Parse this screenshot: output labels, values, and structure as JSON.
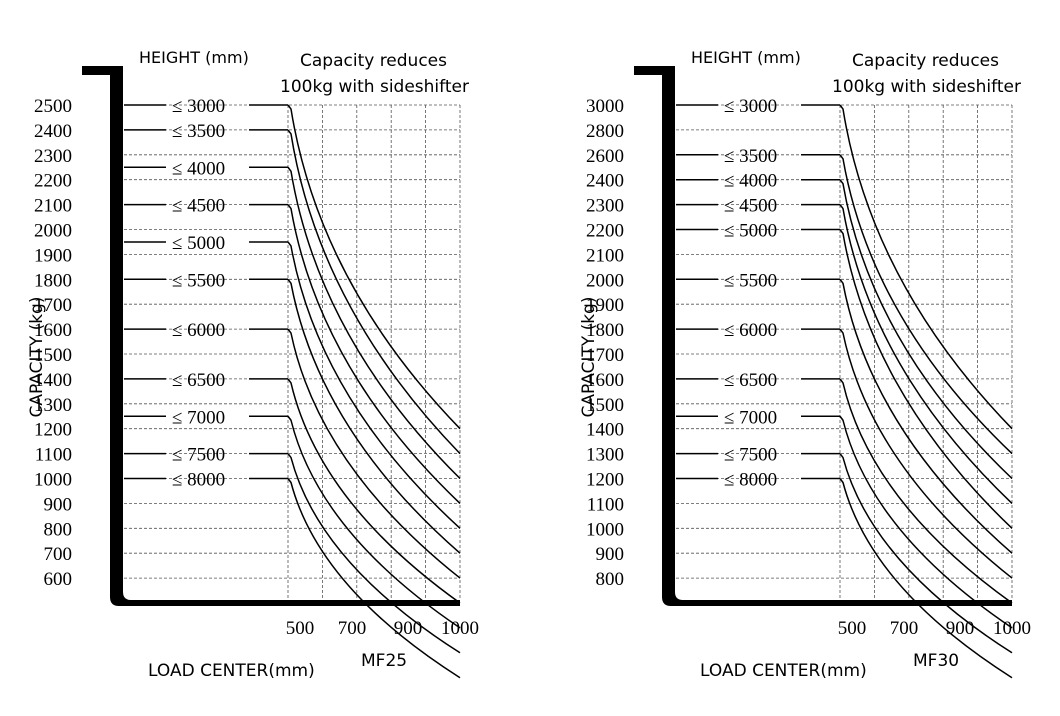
{
  "chart_data": [
    {
      "type": "line",
      "model": "MF25",
      "height_header": "HEIGHT (mm)",
      "note_lines": [
        "Capacity reduces",
        "100kg with sideshifter"
      ],
      "ylabel": "CAPACITY (kg)",
      "xlabel": "LOAD CENTER(mm)",
      "y_ticks": [
        2500,
        2400,
        2300,
        2200,
        2100,
        2000,
        1900,
        1800,
        1700,
        1600,
        1500,
        1400,
        1300,
        1200,
        1100,
        1000,
        900,
        800,
        700,
        600
      ],
      "x_ticks": [
        500,
        700,
        900,
        1000
      ],
      "x_grid": [
        500,
        600,
        700,
        800,
        900,
        1000
      ],
      "series": [
        {
          "name": "≤ 3000",
          "values": [
            [
              500,
              2500
            ],
            [
              1000,
              1200
            ]
          ]
        },
        {
          "name": "≤ 3500",
          "values": [
            [
              500,
              2400
            ],
            [
              1000,
              1100
            ]
          ]
        },
        {
          "name": "≤ 4000",
          "values": [
            [
              500,
              2250
            ],
            [
              1000,
              1000
            ]
          ]
        },
        {
          "name": "≤ 4500",
          "values": [
            [
              500,
              2100
            ],
            [
              1000,
              900
            ]
          ]
        },
        {
          "name": "≤ 5000",
          "values": [
            [
              500,
              1950
            ],
            [
              1000,
              800
            ]
          ]
        },
        {
          "name": "≤ 5500",
          "values": [
            [
              500,
              1800
            ],
            [
              1000,
              700
            ]
          ]
        },
        {
          "name": "≤ 6000",
          "values": [
            [
              500,
              1600
            ],
            [
              1000,
              600
            ]
          ]
        },
        {
          "name": "≤ 6500",
          "values": [
            [
              500,
              1400
            ],
            [
              1000,
              500
            ]
          ]
        },
        {
          "name": "≤ 7000",
          "values": [
            [
              500,
              1250
            ],
            [
              1000,
              400
            ]
          ]
        },
        {
          "name": "≤ 7500",
          "values": [
            [
              500,
              1100
            ],
            [
              1000,
              300
            ]
          ]
        },
        {
          "name": "≤ 8000",
          "values": [
            [
              500,
              1000
            ],
            [
              1000,
              200
            ]
          ]
        }
      ]
    },
    {
      "type": "line",
      "model": "MF30",
      "height_header": "HEIGHT (mm)",
      "note_lines": [
        "Capacity reduces",
        "100kg with sideshifter"
      ],
      "ylabel": "CAPACITY (kg)",
      "xlabel": "LOAD CENTER(mm)",
      "y_ticks": [
        3000,
        2800,
        2600,
        2400,
        2300,
        2200,
        2100,
        2000,
        1900,
        1800,
        1700,
        1600,
        1500,
        1400,
        1300,
        1200,
        1100,
        1000,
        900,
        800
      ],
      "x_ticks": [
        500,
        700,
        900,
        1000
      ],
      "x_grid": [
        500,
        600,
        700,
        800,
        900,
        1000
      ],
      "series": [
        {
          "name": "≤ 3000",
          "values": [
            [
              500,
              3000
            ],
            [
              1000,
              1400
            ]
          ]
        },
        {
          "name": "≤ 3500",
          "values": [
            [
              500,
              2600
            ],
            [
              1000,
              1300
            ]
          ]
        },
        {
          "name": "≤ 4000",
          "values": [
            [
              500,
              2400
            ],
            [
              1000,
              1200
            ]
          ]
        },
        {
          "name": "≤ 4500",
          "values": [
            [
              500,
              2300
            ],
            [
              1000,
              1100
            ]
          ]
        },
        {
          "name": "≤ 5000",
          "values": [
            [
              500,
              2200
            ],
            [
              1000,
              1000
            ]
          ]
        },
        {
          "name": "≤ 5500",
          "values": [
            [
              500,
              2000
            ],
            [
              1000,
              900
            ]
          ]
        },
        {
          "name": "≤ 6000",
          "values": [
            [
              500,
              1800
            ],
            [
              1000,
              800
            ]
          ]
        },
        {
          "name": "≤ 6500",
          "values": [
            [
              500,
              1600
            ],
            [
              1000,
              700
            ]
          ]
        },
        {
          "name": "≤ 7000",
          "values": [
            [
              500,
              1450
            ],
            [
              1000,
              600
            ]
          ]
        },
        {
          "name": "≤ 7500",
          "values": [
            [
              500,
              1300
            ],
            [
              1000,
              500
            ]
          ]
        },
        {
          "name": "≤ 8000",
          "values": [
            [
              500,
              1200
            ],
            [
              1000,
              400
            ]
          ]
        }
      ]
    }
  ]
}
